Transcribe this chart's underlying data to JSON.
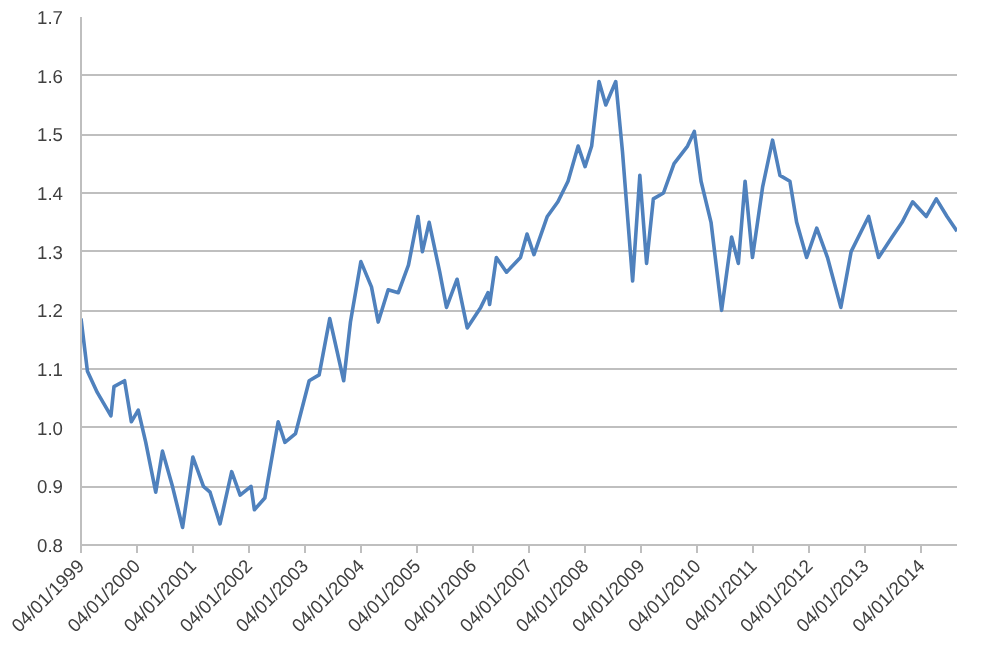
{
  "chart_data": {
    "type": "line",
    "x": [
      "1999-01-04",
      "1999-02-15",
      "1999-04-20",
      "1999-07-18",
      "1999-08-07",
      "1999-10-15",
      "1999-11-28",
      "2000-01-12",
      "2000-03-01",
      "2000-05-05",
      "2000-06-18",
      "2000-08-22",
      "2000-10-27",
      "2001-01-02",
      "2001-03-12",
      "2001-04-24",
      "2001-06-28",
      "2001-09-12",
      "2001-11-06",
      "2002-01-16",
      "2002-02-07",
      "2002-04-16",
      "2002-07-12",
      "2002-08-25",
      "2002-11-02",
      "2003-01-30",
      "2003-04-05",
      "2003-06-13",
      "2003-09-12",
      "2003-10-26",
      "2004-01-02",
      "2004-03-11",
      "2004-04-24",
      "2004-06-28",
      "2004-09-02",
      "2004-11-07",
      "2005-01-08",
      "2005-02-06",
      "2005-03-22",
      "2005-05-30",
      "2005-07-13",
      "2005-09-20",
      "2005-11-25",
      "2006-02-21",
      "2006-04-09",
      "2006-04-20",
      "2006-06-03",
      "2006-08-08",
      "2006-11-07",
      "2006-12-20",
      "2007-02-03",
      "2007-05-01",
      "2007-07-09",
      "2007-09-13",
      "2007-11-18",
      "2008-01-02",
      "2008-02-14",
      "2008-04-02",
      "2008-05-16",
      "2008-07-20",
      "2008-09-02",
      "2008-11-07",
      "2008-12-24",
      "2009-02-06",
      "2009-03-22",
      "2009-05-27",
      "2009-08-04",
      "2009-10-31",
      "2009-12-14",
      "2010-01-27",
      "2010-04-02",
      "2010-06-10",
      "2010-08-14",
      "2010-09-27",
      "2010-11-10",
      "2010-12-28",
      "2011-03-04",
      "2011-05-08",
      "2011-06-25",
      "2011-08-29",
      "2011-10-12",
      "2011-12-16",
      "2012-02-20",
      "2012-04-30",
      "2012-07-26",
      "2012-10-01",
      "2013-01-23",
      "2013-03-29",
      "2013-06-25",
      "2013-08-29",
      "2013-11-06",
      "2014-02-03",
      "2014-04-09",
      "2014-06-18",
      "2014-08-22"
    ],
    "series": [
      {
        "color": "#4f81bd",
        "values": [
          1.186,
          1.096,
          1.06,
          1.02,
          1.07,
          1.08,
          1.01,
          1.03,
          0.975,
          0.89,
          0.96,
          0.9,
          0.83,
          0.95,
          0.9,
          0.89,
          0.836,
          0.925,
          0.885,
          0.9,
          0.86,
          0.88,
          1.01,
          0.975,
          0.99,
          1.08,
          1.09,
          1.186,
          1.08,
          1.18,
          1.283,
          1.24,
          1.18,
          1.235,
          1.23,
          1.277,
          1.36,
          1.3,
          1.35,
          1.265,
          1.205,
          1.253,
          1.17,
          1.205,
          1.23,
          1.21,
          1.29,
          1.265,
          1.29,
          1.33,
          1.295,
          1.36,
          1.385,
          1.42,
          1.48,
          1.445,
          1.48,
          1.59,
          1.55,
          1.59,
          1.47,
          1.25,
          1.43,
          1.28,
          1.39,
          1.4,
          1.45,
          1.48,
          1.505,
          1.42,
          1.35,
          1.2,
          1.325,
          1.28,
          1.42,
          1.29,
          1.41,
          1.49,
          1.43,
          1.42,
          1.35,
          1.29,
          1.34,
          1.29,
          1.205,
          1.3,
          1.36,
          1.29,
          1.325,
          1.35,
          1.385,
          1.36,
          1.39,
          1.36,
          1.335
        ]
      }
    ],
    "xlim": [
      "1999-01-04",
      "2014-08-22"
    ],
    "xticks": [
      {
        "value": "1999-01-04",
        "label": "04/01/1999"
      },
      {
        "value": "2000-01-04",
        "label": "04/01/2000"
      },
      {
        "value": "2001-01-04",
        "label": "04/01/2001"
      },
      {
        "value": "2002-01-04",
        "label": "04/01/2002"
      },
      {
        "value": "2003-01-04",
        "label": "04/01/2003"
      },
      {
        "value": "2004-01-04",
        "label": "04/01/2004"
      },
      {
        "value": "2005-01-04",
        "label": "04/01/2005"
      },
      {
        "value": "2006-01-04",
        "label": "04/01/2006"
      },
      {
        "value": "2007-01-04",
        "label": "04/01/2007"
      },
      {
        "value": "2008-01-04",
        "label": "04/01/2008"
      },
      {
        "value": "2009-01-04",
        "label": "04/01/2009"
      },
      {
        "value": "2010-01-04",
        "label": "04/01/2010"
      },
      {
        "value": "2011-01-04",
        "label": "04/01/2011"
      },
      {
        "value": "2012-01-04",
        "label": "04/01/2012"
      },
      {
        "value": "2013-01-04",
        "label": "04/01/2013"
      },
      {
        "value": "2014-01-04",
        "label": "04/01/2014"
      }
    ],
    "ylim": [
      0.8,
      1.7
    ],
    "yticks": [
      {
        "value": 0.8,
        "label": "0.8"
      },
      {
        "value": 0.9,
        "label": "0.9"
      },
      {
        "value": 1.0,
        "label": "1.0"
      },
      {
        "value": 1.1,
        "label": "1.1"
      },
      {
        "value": 1.2,
        "label": "1.2"
      },
      {
        "value": 1.3,
        "label": "1.3"
      },
      {
        "value": 1.4,
        "label": "1.4"
      },
      {
        "value": 1.5,
        "label": "1.5"
      },
      {
        "value": 1.6,
        "label": "1.6"
      },
      {
        "value": 1.7,
        "label": "1.7"
      }
    ],
    "grid": "y",
    "marker": "none",
    "line_style": "solid"
  }
}
